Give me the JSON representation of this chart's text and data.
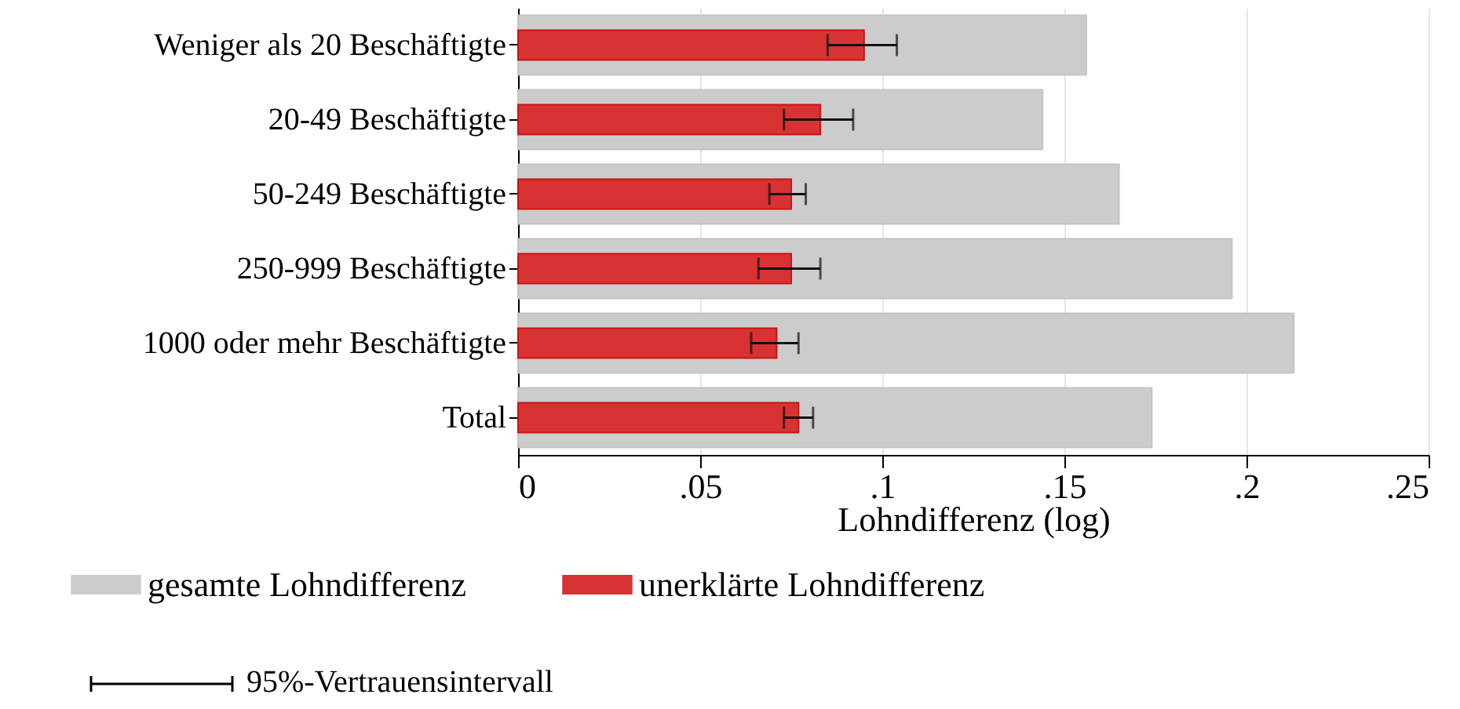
{
  "chart_data": {
    "type": "bar",
    "orientation": "horizontal",
    "xlabel": "Lohndifferenz (log)",
    "categories": [
      "Weniger als 20 Beschäftigte",
      "20-49 Beschäftigte",
      "50-249 Beschäftigte",
      "250-999 Beschäftigte",
      "1000 oder mehr Beschäftigte",
      "Total"
    ],
    "series": [
      {
        "name": "gesamte Lohndifferenz",
        "color": "#cccccc",
        "values": [
          0.156,
          0.144,
          0.165,
          0.196,
          0.213,
          0.174
        ]
      },
      {
        "name": "unerklärte Lohndifferenz",
        "color": "#d73333",
        "values": [
          0.095,
          0.083,
          0.075,
          0.075,
          0.071,
          0.077
        ],
        "errors": [
          [
            0.085,
            0.104
          ],
          [
            0.073,
            0.092
          ],
          [
            0.069,
            0.079
          ],
          [
            0.066,
            0.083
          ],
          [
            0.064,
            0.077
          ],
          [
            0.073,
            0.081
          ]
        ]
      }
    ],
    "xlim": [
      0,
      0.25
    ],
    "xticks": [
      {
        "value": 0,
        "label": "0"
      },
      {
        "value": 0.05,
        "label": ".05"
      },
      {
        "value": 0.1,
        "label": ".1"
      },
      {
        "value": 0.15,
        "label": ".15"
      },
      {
        "value": 0.2,
        "label": ".2"
      },
      {
        "value": 0.25,
        "label": ".25"
      }
    ],
    "grid": "x",
    "legend": "bottom",
    "annotations": [
      "95%-Vertrauensintervall"
    ]
  }
}
